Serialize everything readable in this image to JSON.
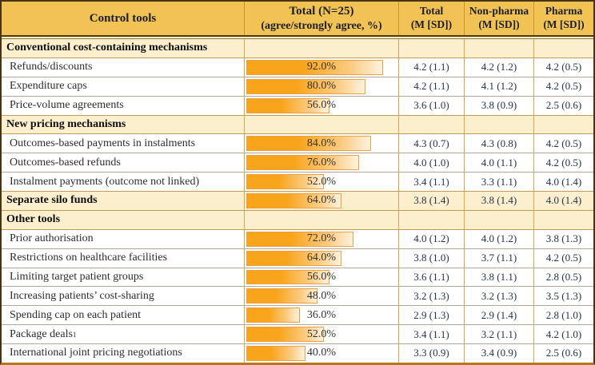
{
  "colors": {
    "header_bg": "#F1C355",
    "section_bg": "#FBEFCE",
    "row_bg": "#FFFFFF",
    "bar_orange": "#F9A51B",
    "bar_fade": "#FDF3DE",
    "bar_border": "#EE9F43",
    "cell_border_vertical": "#E2A14B",
    "outer_border": "#463311",
    "outer_border_bottom": "#B9771C",
    "value_text": "#263247"
  },
  "header": {
    "columns": [
      {
        "line1": "Control tools",
        "line2": ""
      },
      {
        "line1": "Total (N=25)",
        "line2": "(agree/strongly agree, %)"
      },
      {
        "line1": "Total",
        "line2": "(M [SD])"
      },
      {
        "line1": "Non-pharma",
        "line2": "(M [SD])"
      },
      {
        "line1": "Pharma",
        "line2": "(M [SD])"
      }
    ]
  },
  "rows": [
    {
      "type": "section",
      "label": "Conventional cost-containing mechanisms",
      "pct": null,
      "pct_label": "",
      "total_msd": "",
      "nonpharma_msd": "",
      "pharma_msd": ""
    },
    {
      "type": "data",
      "label": "Refunds/discounts",
      "pct": 92,
      "pct_label": "92.0%",
      "total_msd": "4.2 (1.1)",
      "nonpharma_msd": "4.2 (1.2)",
      "pharma_msd": "4.2 (0.5)"
    },
    {
      "type": "data",
      "label": "Expenditure caps",
      "pct": 80,
      "pct_label": "80.0%",
      "total_msd": "4.2 (1.1)",
      "nonpharma_msd": "4.1 (1.2)",
      "pharma_msd": "4.2 (0.5)"
    },
    {
      "type": "data",
      "label": "Price-volume agreements",
      "pct": 56,
      "pct_label": "56.0%",
      "total_msd": "3.6 (1.0)",
      "nonpharma_msd": "3.8 (0.9)",
      "pharma_msd": "2.5 (0.6)"
    },
    {
      "type": "section",
      "label": "New pricing mechanisms",
      "pct": null,
      "pct_label": "",
      "total_msd": "",
      "nonpharma_msd": "",
      "pharma_msd": ""
    },
    {
      "type": "data",
      "label": "Outcomes-based payments in instalments",
      "pct": 84,
      "pct_label": "84.0%",
      "total_msd": "4.3 (0.7)",
      "nonpharma_msd": "4.3 (0.8)",
      "pharma_msd": "4.2 (0.5)"
    },
    {
      "type": "data",
      "label": "Outcomes-based refunds",
      "pct": 76,
      "pct_label": "76.0%",
      "total_msd": "4.0 (1.0)",
      "nonpharma_msd": "4.0 (1.1)",
      "pharma_msd": "4.2 (0.5)"
    },
    {
      "type": "data",
      "label": "Instalment payments (outcome not linked)",
      "pct": 52,
      "pct_label": "52.0%",
      "total_msd": "3.4 (1.1)",
      "nonpharma_msd": "3.3 (1.1)",
      "pharma_msd": "4.0 (1.4)"
    },
    {
      "type": "bold",
      "label": "Separate silo funds",
      "pct": 64,
      "pct_label": "64.0%",
      "total_msd": "3.8 (1.4)",
      "nonpharma_msd": "3.8 (1.4)",
      "pharma_msd": "4.0 (1.4)"
    },
    {
      "type": "section",
      "label": "Other tools",
      "pct": null,
      "pct_label": "",
      "total_msd": "",
      "nonpharma_msd": "",
      "pharma_msd": ""
    },
    {
      "type": "data",
      "label": "Prior authorisation",
      "pct": 72,
      "pct_label": "72.0%",
      "total_msd": "4.0 (1.2)",
      "nonpharma_msd": "4.0 (1.2)",
      "pharma_msd": "3.8 (1.3)"
    },
    {
      "type": "data",
      "label": "Restrictions on healthcare facilities",
      "pct": 64,
      "pct_label": "64.0%",
      "total_msd": "3.8 (1.0)",
      "nonpharma_msd": "3.7 (1.1)",
      "pharma_msd": "4.2 (0.5)"
    },
    {
      "type": "data",
      "label": "Limiting target patient groups",
      "pct": 56,
      "pct_label": "56.0%",
      "total_msd": "3.6 (1.1)",
      "nonpharma_msd": "3.8 (1.1)",
      "pharma_msd": "2.8 (0.5)"
    },
    {
      "type": "data",
      "label": "Increasing patients’ cost-sharing",
      "pct": 48,
      "pct_label": "48.0%",
      "total_msd": "3.2 (1.3)",
      "nonpharma_msd": "3.2 (1.3)",
      "pharma_msd": "3.5 (1.3)"
    },
    {
      "type": "data",
      "label": "Spending cap on each patient",
      "pct": 36,
      "pct_label": "36.0%",
      "total_msd": "2.9 (1.3)",
      "nonpharma_msd": "2.9 (1.4)",
      "pharma_msd": "2.8 (1.0)"
    },
    {
      "type": "data",
      "label": "Package deals",
      "label_sup": "1",
      "pct": 52,
      "pct_label": "52.0%",
      "total_msd": "3.4 (1.1)",
      "nonpharma_msd": "3.2 (1.1)",
      "pharma_msd": "4.2 (1.0)"
    },
    {
      "type": "data",
      "label": "International joint pricing negotiations",
      "pct": 40,
      "pct_label": "40.0%",
      "total_msd": "3.3 (0.9)",
      "nonpharma_msd": "3.4 (0.9)",
      "pharma_msd": "2.5 (0.6)"
    }
  ],
  "chart_data": {
    "type": "bar",
    "orientation": "horizontal",
    "title": "Total (N=25) (agree/strongly agree, %)",
    "xlabel": "agree/strongly agree, %",
    "ylabel": "Control tools",
    "xlim": [
      0,
      100
    ],
    "grid": false,
    "legend_position": "none",
    "sections": [
      {
        "name": "Conventional cost-containing mechanisms",
        "items": [
          "Refunds/discounts",
          "Expenditure caps",
          "Price-volume agreements"
        ]
      },
      {
        "name": "New pricing mechanisms",
        "items": [
          "Outcomes-based payments in instalments",
          "Outcomes-based refunds",
          "Instalment payments (outcome not linked)"
        ]
      },
      {
        "name": "Separate silo funds",
        "items": [
          "Separate silo funds"
        ]
      },
      {
        "name": "Other tools",
        "items": [
          "Prior authorisation",
          "Restrictions on healthcare facilities",
          "Limiting target patient groups",
          "Increasing patients’ cost-sharing",
          "Spending cap on each patient",
          "Package deals",
          "International joint pricing negotiations"
        ]
      }
    ],
    "categories": [
      "Refunds/discounts",
      "Expenditure caps",
      "Price-volume agreements",
      "Outcomes-based payments in instalments",
      "Outcomes-based refunds",
      "Instalment payments (outcome not linked)",
      "Separate silo funds",
      "Prior authorisation",
      "Restrictions on healthcare facilities",
      "Limiting target patient groups",
      "Increasing patients’ cost-sharing",
      "Spending cap on each patient",
      "Package deals",
      "International joint pricing negotiations"
    ],
    "values": [
      92.0,
      80.0,
      56.0,
      84.0,
      76.0,
      52.0,
      64.0,
      72.0,
      64.0,
      56.0,
      48.0,
      36.0,
      52.0,
      40.0
    ],
    "series": [
      {
        "name": "Total (M [SD])",
        "values": [
          "4.2 (1.1)",
          "4.2 (1.1)",
          "3.6 (1.0)",
          "4.3 (0.7)",
          "4.0 (1.0)",
          "3.4 (1.1)",
          "3.8 (1.4)",
          "4.0 (1.2)",
          "3.8 (1.0)",
          "3.6 (1.1)",
          "3.2 (1.3)",
          "2.9 (1.3)",
          "3.4 (1.1)",
          "3.3 (0.9)"
        ]
      },
      {
        "name": "Non-pharma (M [SD])",
        "values": [
          "4.2 (1.2)",
          "4.1 (1.2)",
          "3.8 (0.9)",
          "4.3 (0.8)",
          "4.0 (1.1)",
          "3.3 (1.1)",
          "3.8 (1.4)",
          "4.0 (1.2)",
          "3.7 (1.1)",
          "3.8 (1.1)",
          "3.2 (1.3)",
          "2.9 (1.4)",
          "3.2 (1.1)",
          "3.4 (0.9)"
        ]
      },
      {
        "name": "Pharma (M [SD])",
        "values": [
          "4.2 (0.5)",
          "4.2 (0.5)",
          "2.5 (0.6)",
          "4.2 (0.5)",
          "4.2 (0.5)",
          "4.0 (1.4)",
          "4.0 (1.4)",
          "3.8 (1.3)",
          "4.2 (0.5)",
          "2.8 (0.5)",
          "3.5 (1.3)",
          "2.8 (1.0)",
          "4.2 (1.0)",
          "2.5 (0.6)"
        ]
      }
    ]
  }
}
